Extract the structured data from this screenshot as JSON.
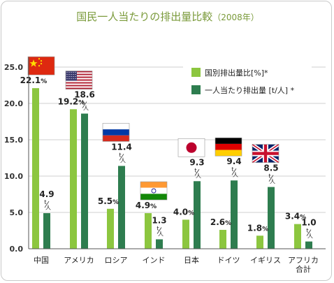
{
  "chart_data": {
    "type": "bar",
    "title": "国民一人当たりの排出量比較",
    "title_suffix": "（2008年）",
    "categories": [
      "中国",
      "アメリカ",
      "ロシア",
      "インド",
      "日本",
      "ドイツ",
      "イギリス",
      "アフリカ合計"
    ],
    "category_lines": [
      [
        "中国"
      ],
      [
        "アメリカ"
      ],
      [
        "ロシア"
      ],
      [
        "インド"
      ],
      [
        "日本"
      ],
      [
        "ドイツ"
      ],
      [
        "イギリス"
      ],
      [
        "アフリカ",
        "合計"
      ]
    ],
    "ylim": [
      0,
      25
    ],
    "yticks": [
      "0.0",
      "5.0",
      "10.0",
      "15.0",
      "20.0",
      "25.0"
    ],
    "grid": true,
    "legend_position": "top-right",
    "series": [
      {
        "name": "国別排出量比[%]*",
        "color": "#8cc63f",
        "values": [
          22.1,
          19.2,
          5.5,
          4.9,
          4.0,
          2.6,
          1.8,
          3.4
        ],
        "labels": [
          "22.1",
          "19.2",
          "5.5",
          "4.9",
          "4.0",
          "2.6",
          "1.8",
          "3.4"
        ],
        "unit_label": "%"
      },
      {
        "name": "一人当たり排出量 [t/人] *",
        "color": "#2e7d4f",
        "values": [
          4.9,
          18.6,
          11.4,
          1.3,
          9.3,
          9.4,
          8.5,
          1.0
        ],
        "labels": [
          "4.9",
          "18.6",
          "11.4",
          "1.3",
          "9.3",
          "9.4",
          "8.5",
          "1.0"
        ],
        "unit_label_top": "t",
        "unit_label_bottom": "人"
      }
    ],
    "flags": [
      "china-flag",
      "usa-flag",
      "russia-flag",
      "india-flag",
      "japan-flag",
      "germany-flag",
      "uk-flag",
      ""
    ]
  }
}
